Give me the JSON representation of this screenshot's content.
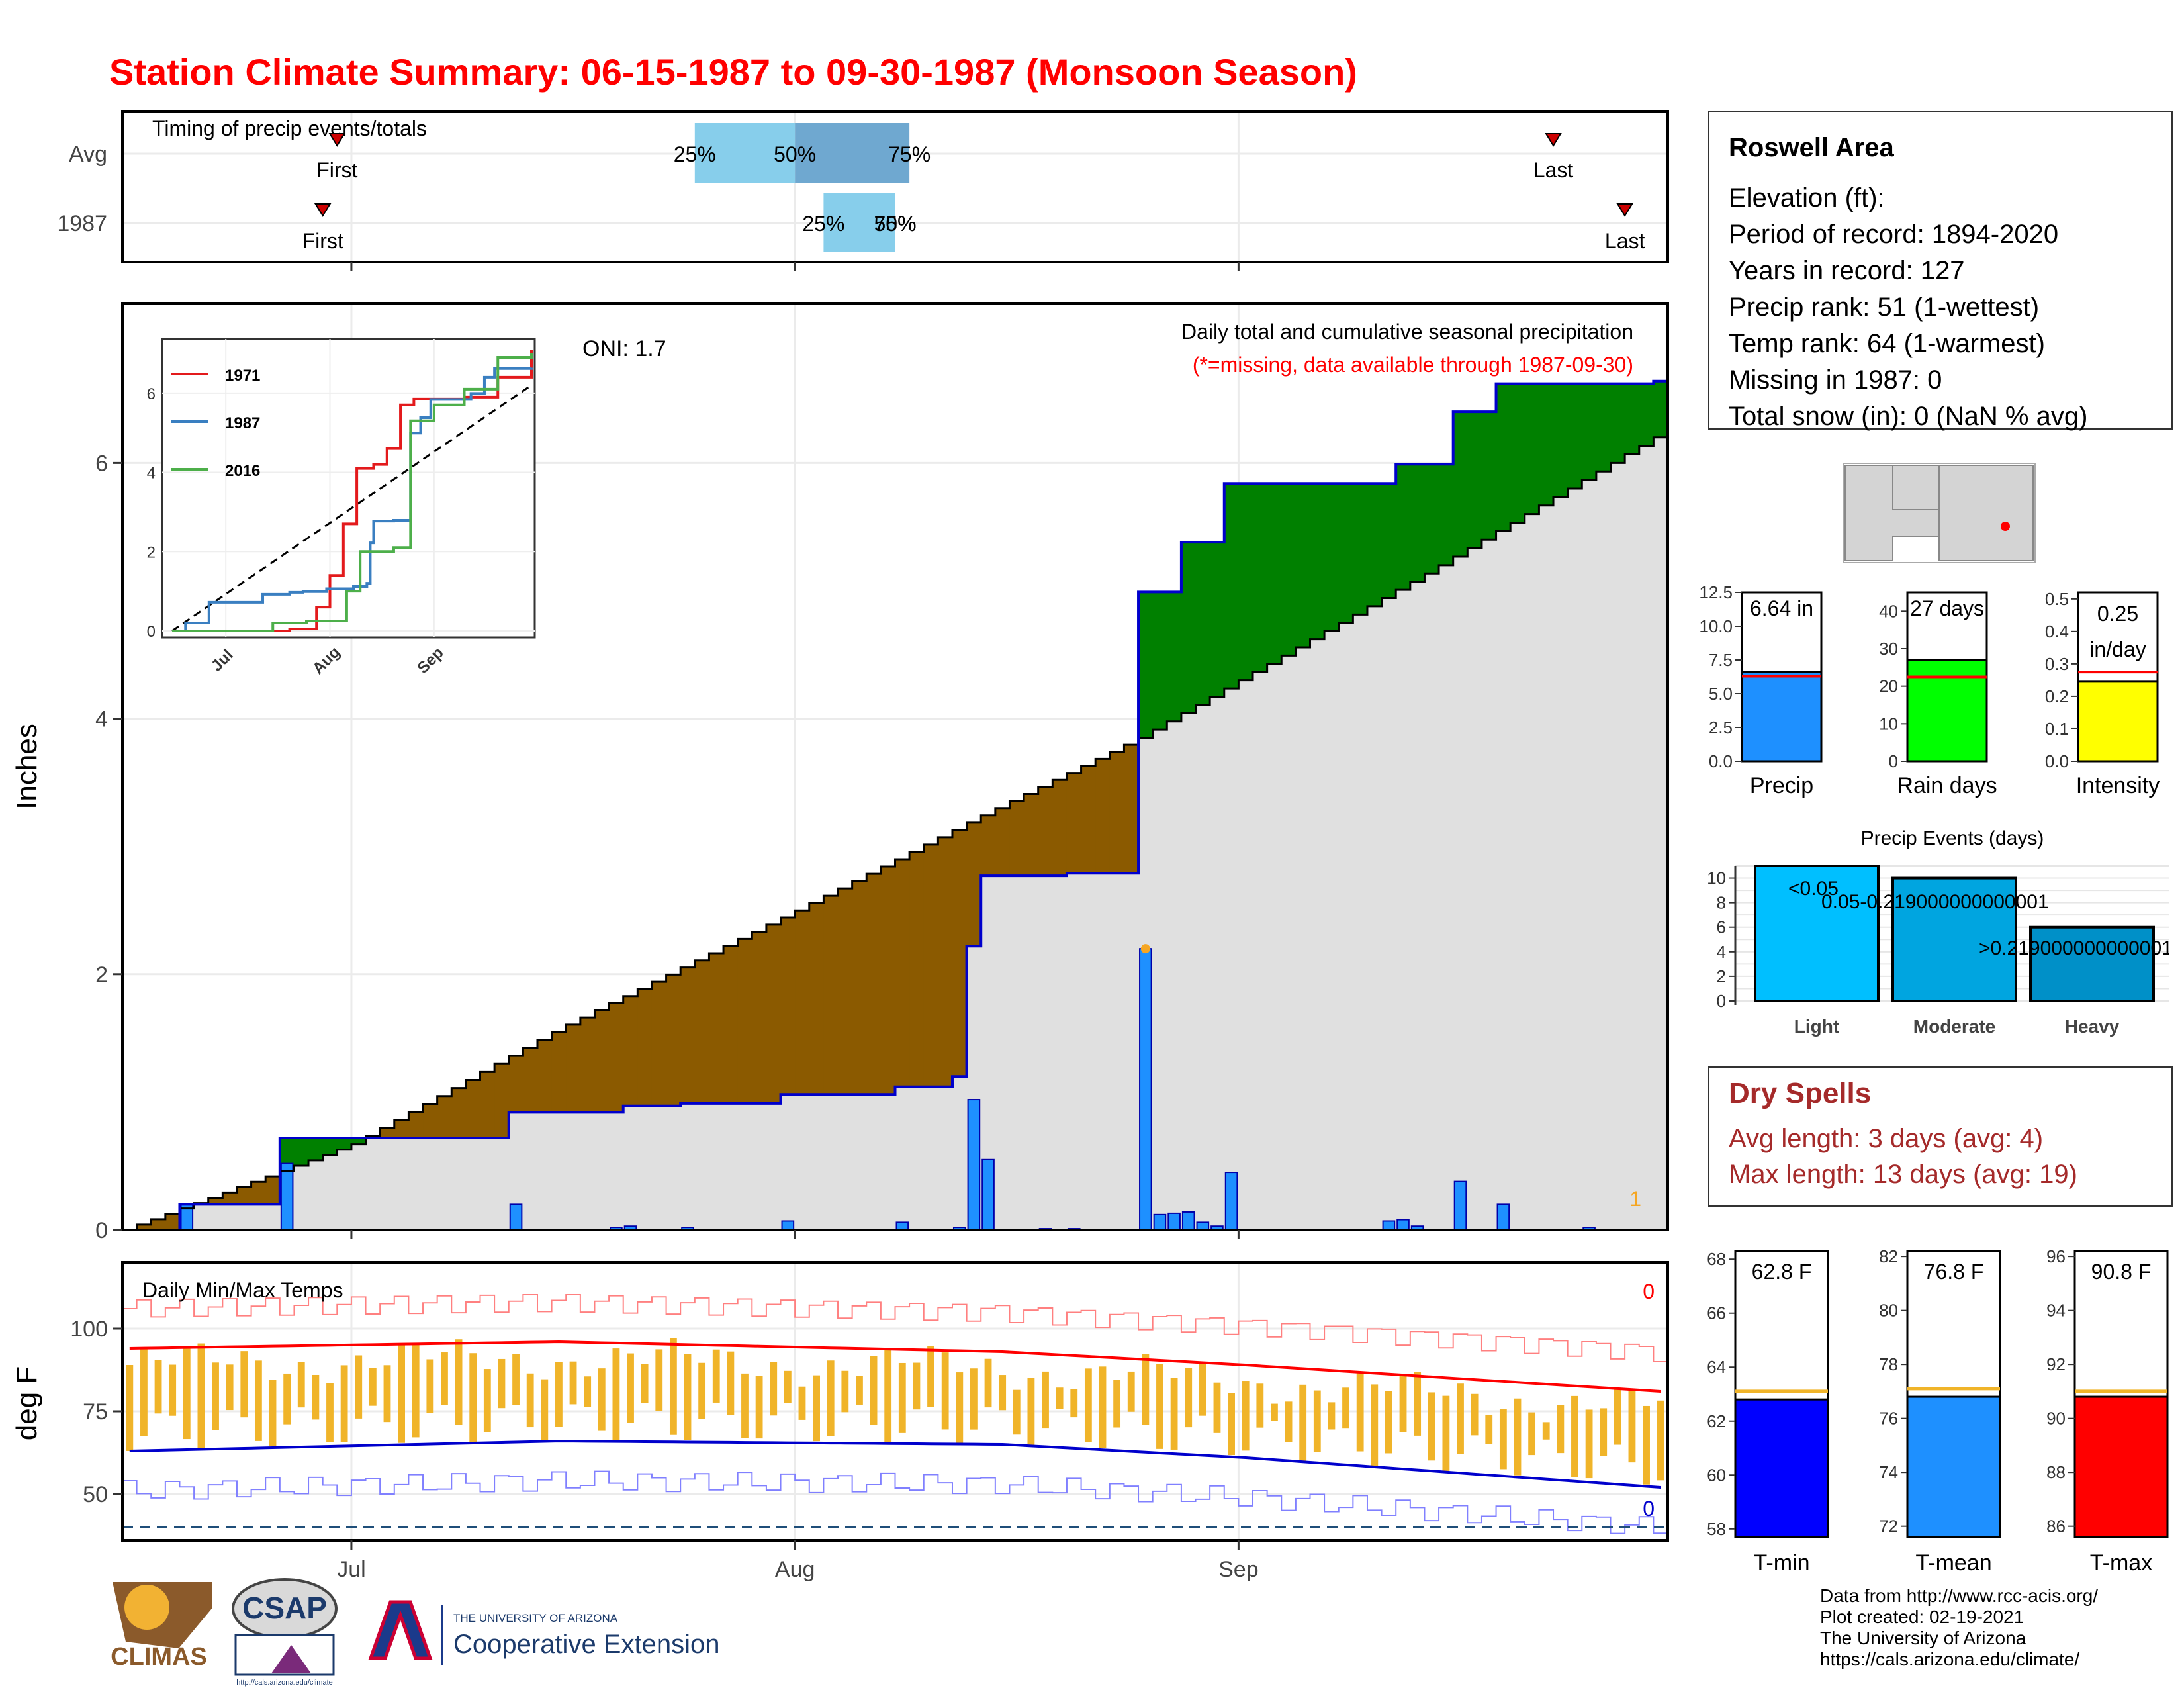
{
  "title": "Station Climate Summary: 06-15-1987 to 09-30-1987 (Monsoon Season)",
  "timing": {
    "label": "Timing of precip events/totals",
    "rows": [
      "Avg",
      "1987"
    ],
    "first_label": "First",
    "last_label": "Last",
    "avg": {
      "first": "06-30",
      "p25": "07-25",
      "p50": "08-01",
      "p75": "08-09",
      "last": "09-23"
    },
    "y1987": {
      "first": "06-29",
      "p25": "08-03",
      "p50": "08-08",
      "p75": "08-08",
      "last": "09-28"
    },
    "pct_labels": [
      "25%",
      "50%",
      "75%"
    ],
    "colors": {
      "avg_low": "#87ceeb",
      "avg_high": "#6fa8d0",
      "y1987": "#87ceeb"
    }
  },
  "station": {
    "name": "Roswell Area",
    "lines": [
      "Elevation (ft):",
      "Period of record: 1894-2020",
      "Years in record: 127",
      "Precip rank: 51 (1-wettest)",
      "Temp rank: 64 (1-warmest)",
      "Missing in 1987: 0",
      "Total snow (in): 0 (NaN % avg)"
    ]
  },
  "precip_panel": {
    "ylabel": "Inches",
    "oni": "ONI: 1.7",
    "desc": "Daily total and cumulative seasonal precipitation",
    "note": "(*=missing, data available through 1987-09-30)",
    "corner_count": "1",
    "yticks": [
      0,
      2,
      4,
      6
    ],
    "ylim": [
      0,
      7.25
    ],
    "colors": {
      "above": "#008000",
      "below": "#8b5a00",
      "fill": "#e0e0e0",
      "bar": "#1e90ff",
      "line": "#0000cc"
    }
  },
  "inset": {
    "series": [
      {
        "name": "1971",
        "color": "#e31a1c"
      },
      {
        "name": "1987",
        "color": "#3a7fc1"
      },
      {
        "name": "2016",
        "color": "#4daf4a"
      }
    ],
    "yticks": [
      0,
      2,
      4,
      6
    ],
    "months": [
      "Jul",
      "Aug",
      "Sep"
    ]
  },
  "temp_panel": {
    "label": "Daily Min/Max Temps",
    "ylabel": "deg F",
    "yticks": [
      50,
      75,
      100
    ],
    "ylim": [
      36,
      120
    ],
    "freeze_line": 40,
    "count_max": "0",
    "count_min": "0",
    "colors": {
      "bar": "#f0b429",
      "max_avg": "#ff0000",
      "min_avg": "#0000cc",
      "rec_hi": "#ff8080",
      "rec_lo": "#8080ff"
    }
  },
  "months": [
    "Jul",
    "Aug",
    "Sep"
  ],
  "summary_bars": [
    {
      "label": "Precip",
      "text": "6.64 in",
      "value": 6.64,
      "avg": 6.3,
      "max": 12.5,
      "ticks": [
        "0.0",
        "2.5",
        "5.0",
        "7.5",
        "10.0",
        "12.5"
      ],
      "color": "#1e90ff"
    },
    {
      "label": "Rain days",
      "text": "27 days",
      "value": 27,
      "avg": 22.5,
      "max": 45,
      "ticks": [
        "0",
        "10",
        "20",
        "30",
        "40"
      ],
      "color": "#00ff00"
    },
    {
      "label": "Intensity",
      "text": "0.25 in/day",
      "text_lines": [
        "0.25",
        "in/day"
      ],
      "value": 0.245,
      "avg": 0.275,
      "max": 0.52,
      "ticks": [
        "0.0",
        "0.1",
        "0.2",
        "0.3",
        "0.4",
        "0.5"
      ],
      "color": "#ffff00"
    }
  ],
  "events": {
    "title": "Precip Events (days)",
    "yticks": [
      0,
      2,
      4,
      6,
      8,
      10
    ],
    "categories": [
      "Light",
      "Moderate",
      "Heavy"
    ],
    "labels": [
      "<0.05",
      "0.05-0.219000000000001",
      ">0.219000000000001"
    ],
    "values": [
      11,
      10,
      6
    ],
    "colors": [
      "#00bfff",
      "#00a5e0",
      "#0090c8"
    ]
  },
  "dry_spells": {
    "title": "Dry Spells",
    "avg": "Avg length: 3 days (avg: 4)",
    "max": "Max length: 13 days (avg: 19)",
    "color": "#a52a2a"
  },
  "temp_bars": [
    {
      "label": "T-min",
      "text": "62.8 F",
      "value": 62.8,
      "avg": 63.1,
      "min": 57.7,
      "max": 68.3,
      "ticks": [
        58,
        60,
        62,
        64,
        66,
        68
      ],
      "color": "#0000ff"
    },
    {
      "label": "T-mean",
      "text": "76.8 F",
      "value": 76.8,
      "avg": 77.1,
      "min": 71.6,
      "max": 82.2,
      "ticks": [
        72,
        74,
        76,
        78,
        80,
        82
      ],
      "color": "#1e90ff"
    },
    {
      "label": "T-max",
      "text": "90.8 F",
      "value": 90.8,
      "avg": 91.0,
      "min": 85.6,
      "max": 96.2,
      "ticks": [
        86,
        88,
        90,
        92,
        94,
        96
      ],
      "color": "#ff0000"
    }
  ],
  "footer": {
    "lines": [
      "Data from http://www.rcc-acis.org/",
      "Plot created: 02-19-2021",
      "The University of Arizona",
      "https://cals.arizona.edu/climate/"
    ],
    "logo_climas": "CLIMAS",
    "logo_csap": "CSAP",
    "csap_url": "http://cals.arizona.edu/climate",
    "ua_small": "THE UNIVERSITY OF ARIZONA",
    "ua_big": "Cooperative Extension"
  },
  "chart_data": [
    {
      "type": "line",
      "title": "Daily total and cumulative seasonal precipitation",
      "ylabel": "Inches",
      "ylim": [
        0,
        7.25
      ],
      "x_start": "1987-06-15",
      "x_end": "1987-09-30",
      "daily_precip_1987": [
        {
          "x": "06-19",
          "y": 0.2
        },
        {
          "x": "06-26",
          "y": 0.52
        },
        {
          "x": "07-12",
          "y": 0.2
        },
        {
          "x": "07-19",
          "y": 0.02
        },
        {
          "x": "07-20",
          "y": 0.03
        },
        {
          "x": "07-24",
          "y": 0.02
        },
        {
          "x": "07-31",
          "y": 0.07
        },
        {
          "x": "08-08",
          "y": 0.06
        },
        {
          "x": "08-12",
          "y": 0.02
        },
        {
          "x": "08-13",
          "y": 1.02
        },
        {
          "x": "08-14",
          "y": 0.55
        },
        {
          "x": "08-18",
          "y": 0.01
        },
        {
          "x": "08-20",
          "y": 0.01
        },
        {
          "x": "08-25",
          "y": 2.2
        },
        {
          "x": "08-26",
          "y": 0.12
        },
        {
          "x": "08-27",
          "y": 0.13
        },
        {
          "x": "08-28",
          "y": 0.14
        },
        {
          "x": "08-29",
          "y": 0.06
        },
        {
          "x": "08-30",
          "y": 0.03
        },
        {
          "x": "08-31",
          "y": 0.45
        },
        {
          "x": "09-11",
          "y": 0.07
        },
        {
          "x": "09-12",
          "y": 0.08
        },
        {
          "x": "09-13",
          "y": 0.03
        },
        {
          "x": "09-16",
          "y": 0.38
        },
        {
          "x": "09-19",
          "y": 0.2
        },
        {
          "x": "09-25",
          "y": 0.02
        }
      ],
      "cumulative_1987": [
        {
          "x": "06-15",
          "y": 0
        },
        {
          "x": "06-19",
          "y": 0.2
        },
        {
          "x": "06-26",
          "y": 0.72
        },
        {
          "x": "07-12",
          "y": 0.92
        },
        {
          "x": "07-20",
          "y": 0.97
        },
        {
          "x": "07-24",
          "y": 0.99
        },
        {
          "x": "07-31",
          "y": 1.06
        },
        {
          "x": "08-08",
          "y": 1.12
        },
        {
          "x": "08-12",
          "y": 1.2
        },
        {
          "x": "08-13",
          "y": 2.22
        },
        {
          "x": "08-14",
          "y": 2.77
        },
        {
          "x": "08-20",
          "y": 2.79
        },
        {
          "x": "08-25",
          "y": 4.99
        },
        {
          "x": "08-28",
          "y": 5.38
        },
        {
          "x": "08-31",
          "y": 5.84
        },
        {
          "x": "09-12",
          "y": 5.99
        },
        {
          "x": "09-16",
          "y": 6.4
        },
        {
          "x": "09-19",
          "y": 6.62
        },
        {
          "x": "09-30",
          "y": 6.64
        }
      ],
      "cumulative_avg": [
        {
          "x": "06-15",
          "y": 0
        },
        {
          "x": "07-01",
          "y": 0.67
        },
        {
          "x": "07-15",
          "y": 1.55
        },
        {
          "x": "08-01",
          "y": 2.5
        },
        {
          "x": "08-15",
          "y": 3.3
        },
        {
          "x": "08-25",
          "y": 3.85
        },
        {
          "x": "09-01",
          "y": 4.3
        },
        {
          "x": "09-15",
          "y": 5.2
        },
        {
          "x": "09-30",
          "y": 6.2
        }
      ]
    },
    {
      "type": "line",
      "title": "Daily Min/Max Temps",
      "ylabel": "deg F",
      "ylim": [
        36,
        120
      ],
      "series": [
        {
          "name": "avg max",
          "points": [
            {
              "x": "06-15",
              "y": 94
            },
            {
              "x": "07-15",
              "y": 96
            },
            {
              "x": "08-15",
              "y": 93
            },
            {
              "x": "09-01",
              "y": 89
            },
            {
              "x": "09-30",
              "y": 81
            }
          ]
        },
        {
          "name": "avg min",
          "points": [
            {
              "x": "06-15",
              "y": 63
            },
            {
              "x": "07-15",
              "y": 66
            },
            {
              "x": "08-15",
              "y": 65
            },
            {
              "x": "09-01",
              "y": 61
            },
            {
              "x": "09-30",
              "y": 52
            }
          ]
        }
      ]
    }
  ]
}
